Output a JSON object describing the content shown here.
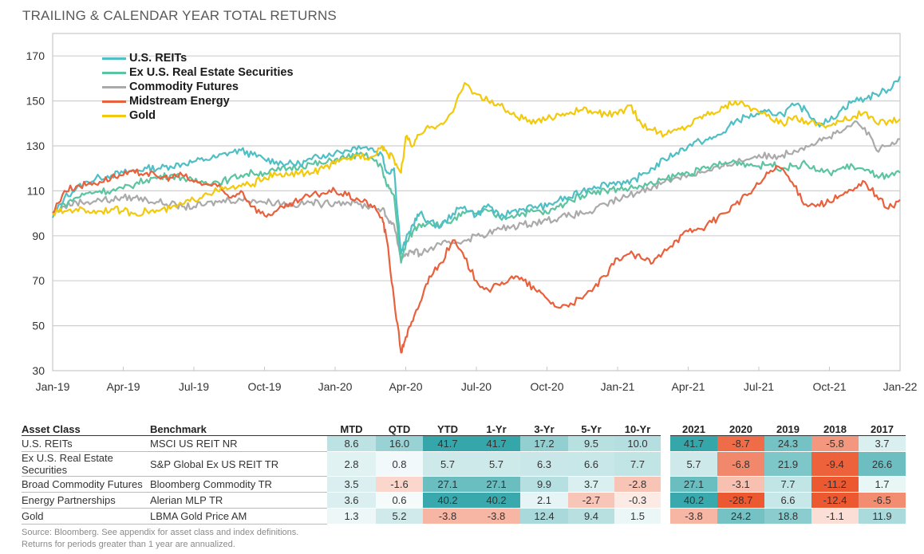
{
  "title": "TRAILING & CALENDAR YEAR TOTAL RETURNS",
  "chart_data": {
    "type": "line",
    "title": "TRAILING & CALENDAR YEAR TOTAL RETURNS",
    "xlabel": "",
    "ylabel": "",
    "ylim": [
      30,
      180
    ],
    "yticks": [
      30,
      50,
      70,
      90,
      110,
      130,
      150,
      170
    ],
    "xticks": [
      "Jan-19",
      "Apr-19",
      "Jul-19",
      "Oct-19",
      "Jan-20",
      "Apr-20",
      "Jul-20",
      "Oct-20",
      "Jan-21",
      "Apr-21",
      "Jul-21",
      "Oct-21",
      "Jan-22"
    ],
    "grid": true,
    "legend_position": "top-left",
    "x_months": [
      0,
      0.5,
      1,
      1.5,
      2,
      2.5,
      3,
      3.5,
      4,
      4.5,
      5,
      5.5,
      6,
      6.5,
      7,
      7.5,
      8,
      8.5,
      9,
      9.5,
      10,
      10.5,
      11,
      11.5,
      12,
      12.5,
      13,
      13.5,
      14,
      14.2,
      14.5,
      14.8,
      15,
      15.3,
      15.6,
      16,
      16.5,
      17,
      17.5,
      18,
      18.5,
      19,
      19.5,
      20,
      20.5,
      21,
      21.5,
      22,
      22.5,
      23,
      23.5,
      24,
      24.5,
      25,
      25.5,
      26,
      26.5,
      27,
      27.5,
      28,
      28.5,
      29,
      29.5,
      30,
      30.5,
      31,
      31.5,
      32,
      32.5,
      33,
      33.5,
      34,
      34.5,
      35,
      35.5,
      36
    ],
    "series": [
      {
        "name": "U.S. REITs",
        "color": "#4fbfc6",
        "values": [
          98,
          107,
          111,
          114,
          116,
          117,
          118,
          119,
          120,
          120,
          121,
          122,
          123,
          124,
          125,
          127,
          128,
          126,
          124,
          123,
          122,
          122,
          124,
          126,
          127,
          128,
          130,
          129,
          126,
          118,
          120,
          82,
          88,
          95,
          100,
          96,
          94,
          100,
          103,
          99,
          104,
          98,
          101,
          102,
          103,
          103,
          106,
          107,
          110,
          112,
          113,
          114,
          113,
          117,
          120,
          124,
          127,
          130,
          132,
          133,
          136,
          141,
          143,
          144,
          145,
          144,
          148,
          146,
          140,
          141,
          146,
          150,
          151,
          153,
          155,
          161
        ]
      },
      {
        "name": "Ex U.S. Real Estate Securities",
        "color": "#5cc4a0",
        "values": [
          100,
          104,
          107,
          109,
          110,
          110,
          111,
          113,
          115,
          116,
          117,
          116,
          114,
          114,
          114,
          115,
          117,
          118,
          118,
          119,
          120,
          121,
          122,
          122,
          124,
          125,
          126,
          125,
          120,
          112,
          108,
          78,
          86,
          92,
          95,
          96,
          95,
          97,
          100,
          100,
          101,
          98,
          99,
          100,
          101,
          100,
          103,
          106,
          108,
          110,
          110,
          111,
          111,
          112,
          113,
          115,
          117,
          118,
          119,
          121,
          122,
          123,
          122,
          121,
          122,
          120,
          121,
          122,
          119,
          118,
          120,
          121,
          119,
          117,
          116,
          118
        ]
      },
      {
        "name": "Commodity Futures",
        "color": "#aaaaaa",
        "values": [
          100,
          103,
          105,
          105,
          106,
          106,
          107,
          107,
          106,
          105,
          104,
          103,
          103,
          104,
          105,
          106,
          106,
          106,
          105,
          105,
          104,
          104,
          105,
          104,
          105,
          105,
          104,
          103,
          102,
          98,
          95,
          80,
          82,
          83,
          82,
          84,
          86,
          87,
          88,
          90,
          91,
          93,
          94,
          95,
          96,
          97,
          98,
          99,
          100,
          101,
          104,
          106,
          108,
          110,
          112,
          114,
          116,
          117,
          118,
          119,
          121,
          123,
          124,
          126,
          125,
          126,
          128,
          130,
          132,
          134,
          136,
          140,
          138,
          128,
          130,
          133
        ]
      },
      {
        "name": "Midstream Energy",
        "color": "#e8603c",
        "values": [
          100,
          110,
          112,
          113,
          114,
          116,
          117,
          118,
          118,
          116,
          116,
          117,
          114,
          113,
          112,
          107,
          110,
          103,
          99,
          101,
          103,
          106,
          108,
          109,
          110,
          108,
          106,
          104,
          98,
          88,
          62,
          38,
          45,
          52,
          60,
          72,
          78,
          88,
          80,
          70,
          66,
          68,
          72,
          70,
          66,
          62,
          58,
          60,
          62,
          67,
          72,
          80,
          82,
          80,
          78,
          84,
          88,
          92,
          93,
          96,
          100,
          104,
          108,
          113,
          119,
          120,
          112,
          104,
          104,
          105,
          108,
          110,
          114,
          108,
          102,
          106
        ]
      },
      {
        "name": "Gold",
        "color": "#f2c90c",
        "values": [
          100,
          101,
          102,
          101,
          101,
          102,
          101,
          100,
          101,
          101,
          102,
          104,
          106,
          109,
          110,
          111,
          112,
          113,
          116,
          117,
          117,
          118,
          118,
          120,
          122,
          124,
          126,
          125,
          130,
          127,
          124,
          118,
          134,
          130,
          135,
          138,
          140,
          145,
          158,
          153,
          150,
          148,
          144,
          142,
          140,
          142,
          144,
          145,
          146,
          145,
          144,
          144,
          148,
          140,
          137,
          135,
          137,
          139,
          143,
          145,
          147,
          150,
          148,
          145,
          142,
          140,
          143,
          141,
          140,
          139,
          141,
          143,
          145,
          140,
          141,
          142
        ]
      }
    ]
  },
  "table": {
    "headers": [
      "Asset Class",
      "Benchmark",
      "MTD",
      "QTD",
      "YTD",
      "1-Yr",
      "3-Yr",
      "5-Yr",
      "10-Yr",
      "2021",
      "2020",
      "2019",
      "2018",
      "2017"
    ],
    "rows": [
      {
        "asset": "U.S. REITs",
        "benchmark": "MSCI US REIT NR",
        "values": [
          "8.6",
          "16.0",
          "41.7",
          "41.7",
          "17.2",
          "9.5",
          "10.0",
          "41.7",
          "-8.7",
          "24.3",
          "-5.8",
          "3.7"
        ]
      },
      {
        "asset": "Ex U.S. Real Estate Securities",
        "benchmark": "S&P Global Ex US REIT TR",
        "values": [
          "2.8",
          "0.8",
          "5.7",
          "5.7",
          "6.3",
          "6.6",
          "7.7",
          "5.7",
          "-6.8",
          "21.9",
          "-9.4",
          "26.6"
        ]
      },
      {
        "asset": "Broad Commodity Futures",
        "benchmark": "Bloomberg Commodity TR",
        "values": [
          "3.5",
          "-1.6",
          "27.1",
          "27.1",
          "9.9",
          "3.7",
          "-2.8",
          "27.1",
          "-3.1",
          "7.7",
          "-11.2",
          "1.7"
        ]
      },
      {
        "asset": "Energy Partnerships",
        "benchmark": "Alerian MLP TR",
        "values": [
          "3.6",
          "0.6",
          "40.2",
          "40.2",
          "2.1",
          "-2.7",
          "-0.3",
          "40.2",
          "-28.7",
          "6.6",
          "-12.4",
          "-6.5"
        ]
      },
      {
        "asset": "Gold",
        "benchmark": "LBMA Gold Price AM",
        "values": [
          "1.3",
          "5.2",
          "-3.8",
          "-3.8",
          "12.4",
          "9.4",
          "1.5",
          "-3.8",
          "24.2",
          "18.8",
          "-1.1",
          "11.9"
        ]
      }
    ]
  },
  "footer": {
    "line1": "Source: Bloomberg. See appendix for asset class and index definitions.",
    "line2": "Returns for periods greater than 1 year are annualized."
  }
}
